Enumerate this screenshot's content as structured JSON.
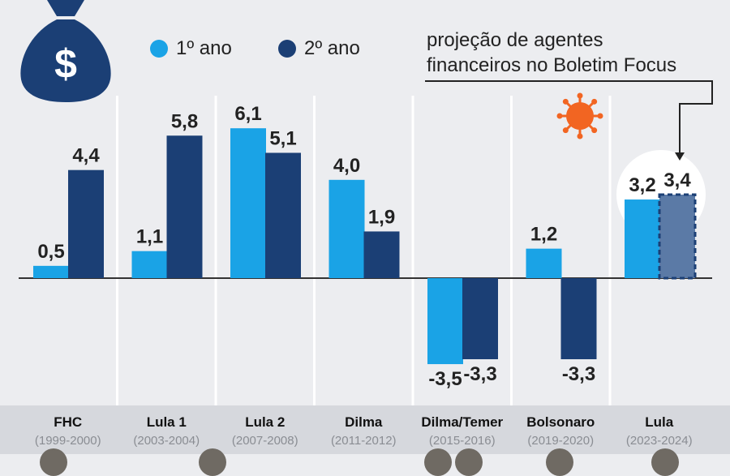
{
  "legend": {
    "first_label": "1º ano",
    "second_label": "2º ano"
  },
  "annotation": {
    "line1": "projeção de agentes",
    "line2": "financeiros no Boletim Focus"
  },
  "icons": {
    "money_bag": "money-bag-icon",
    "virus": "coronavirus-icon"
  },
  "colors": {
    "first_year": "#1aa3e6",
    "second_year": "#1b3f75",
    "projection": "#5b7aa6",
    "money_bag": "#1b3f75",
    "virus": "#f26522",
    "background": "#ecedf0",
    "period_band": "#d6d8dd"
  },
  "periods": [
    {
      "name": "FHC",
      "years": "(1999-2000)"
    },
    {
      "name": "Lula 1",
      "years": "(2003-2004)"
    },
    {
      "name": "Lula 2",
      "years": "(2007-2008)"
    },
    {
      "name": "Dilma",
      "years": "(2011-2012)"
    },
    {
      "name": "Dilma/Temer",
      "years": "(2015-2016)"
    },
    {
      "name": "Bolsonaro",
      "years": "(2019-2020)"
    },
    {
      "name": "Lula",
      "years": "(2023-2024)"
    }
  ],
  "chart_data": {
    "type": "bar",
    "categories": [
      "FHC",
      "Lula 1",
      "Lula 2",
      "Dilma",
      "Dilma/Temer",
      "Bolsonaro",
      "Lula"
    ],
    "series": [
      {
        "name": "1º ano",
        "values": [
          0.5,
          1.1,
          6.1,
          4.0,
          -3.5,
          1.2,
          3.2
        ],
        "labels": [
          "0,5",
          "1,1",
          "6,1",
          "4,0",
          "-3,5",
          "1,2",
          "3,2"
        ]
      },
      {
        "name": "2º ano",
        "values": [
          4.4,
          5.8,
          5.1,
          1.9,
          -3.3,
          -3.3,
          3.4
        ],
        "labels": [
          "4,4",
          "5,8",
          "5,1",
          "1,9",
          "-3,3",
          "-3,3",
          "3,4"
        ]
      }
    ],
    "projected": {
      "series": 1,
      "index": 6
    },
    "covid_marker_index": 5,
    "ylim": [
      -3.5,
      6.1
    ],
    "grid": false,
    "legend_position": "top"
  }
}
